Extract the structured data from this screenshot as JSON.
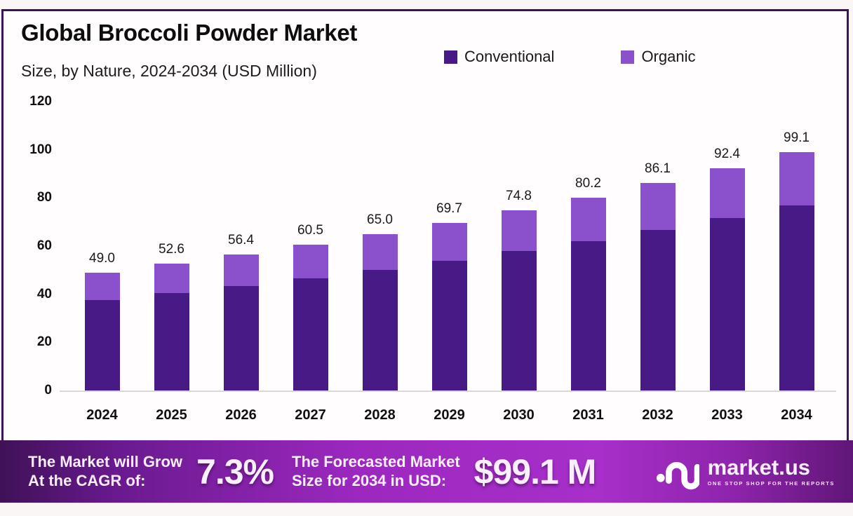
{
  "chart_data": {
    "type": "bar",
    "stacked": true,
    "title": "Global Broccoli Powder Market",
    "subtitle": "Size, by Nature, 2024-2034 (USD Million)",
    "xlabel": "",
    "ylabel": "",
    "ylim": [
      0,
      120
    ],
    "yticks": [
      0,
      20,
      40,
      60,
      80,
      100,
      120
    ],
    "grid": false,
    "legend_position": "top-right",
    "categories": [
      "2024",
      "2025",
      "2026",
      "2027",
      "2028",
      "2029",
      "2030",
      "2031",
      "2032",
      "2033",
      "2034"
    ],
    "series": [
      {
        "name": "Conventional",
        "color": "#481A86",
        "values": [
          37.7,
          40.6,
          43.4,
          46.6,
          50.1,
          53.9,
          57.9,
          62.1,
          66.7,
          71.6,
          76.9
        ]
      },
      {
        "name": "Organic",
        "color": "#8B51CC",
        "values": [
          11.3,
          12.0,
          13.0,
          13.9,
          14.9,
          15.8,
          16.9,
          18.1,
          19.4,
          20.8,
          22.2
        ]
      }
    ],
    "totals": [
      49.0,
      52.6,
      56.4,
      60.5,
      65.0,
      69.7,
      74.8,
      80.2,
      86.1,
      92.4,
      99.1
    ],
    "total_labels": [
      "49.0",
      "52.6",
      "56.4",
      "60.5",
      "65.0",
      "69.7",
      "74.8",
      "80.2",
      "86.1",
      "92.4",
      "99.1"
    ]
  },
  "footer": {
    "grow_line1": "The Market will Grow",
    "grow_line2": "At the CAGR of:",
    "cagr_value": "7.3%",
    "forecast_line1": "The Forecasted Market",
    "forecast_line2": "Size for 2034 in USD:",
    "forecast_value": "$99.1 M",
    "brand": {
      "name": "market.us",
      "tagline": "ONE STOP SHOP FOR THE REPORTS"
    }
  },
  "colors": {
    "conventional": "#481A86",
    "organic": "#8B51CC",
    "card_border": "#3B1656",
    "axis_line": "#D8D8D8",
    "footer_text": "#FAEFFC"
  }
}
